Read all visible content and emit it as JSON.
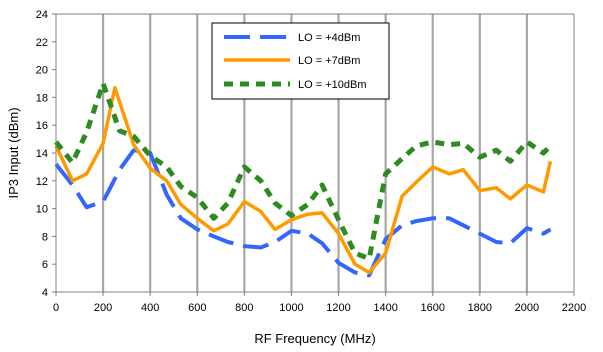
{
  "chart_data": {
    "type": "line",
    "xlabel": "RF Frequency (MHz)",
    "ylabel": "IP3 Input (dBm)",
    "xlim": [
      0,
      2200
    ],
    "ylim": [
      4,
      24
    ],
    "xticks": [
      0,
      200,
      400,
      600,
      800,
      1000,
      1200,
      1400,
      1600,
      1800,
      2000,
      2200
    ],
    "yticks": [
      4,
      6,
      8,
      10,
      12,
      14,
      16,
      18,
      20,
      22,
      24
    ],
    "grid": "vertical",
    "legend_position": "top-center",
    "series": [
      {
        "name": "LO = +4dBm",
        "color": "#3366FF",
        "style": "long-dash",
        "x": [
          0,
          70,
          130,
          200,
          270,
          330,
          400,
          470,
          530,
          600,
          670,
          730,
          800,
          870,
          930,
          1000,
          1070,
          1130,
          1200,
          1270,
          1330,
          1400,
          1470,
          1530,
          1600,
          1670,
          1730,
          1800,
          1870,
          1930,
          2000,
          2070,
          2100
        ],
        "values": [
          13.2,
          11.7,
          10.1,
          10.5,
          12.8,
          14.2,
          14.0,
          11.0,
          9.3,
          8.5,
          8.0,
          7.6,
          7.3,
          7.2,
          7.6,
          8.4,
          8.2,
          7.5,
          6.1,
          5.4,
          5.2,
          7.8,
          8.8,
          9.1,
          9.3,
          9.3,
          8.8,
          8.2,
          7.6,
          7.5,
          8.6,
          8.2,
          8.5
        ]
      },
      {
        "name": "LO = +7dBm",
        "color": "#FF9900",
        "style": "solid",
        "x": [
          0,
          70,
          130,
          200,
          250,
          330,
          400,
          470,
          530,
          600,
          670,
          730,
          800,
          870,
          930,
          1000,
          1070,
          1130,
          1200,
          1270,
          1330,
          1400,
          1470,
          1530,
          1600,
          1670,
          1730,
          1800,
          1870,
          1930,
          2000,
          2070,
          2100
        ],
        "values": [
          14.5,
          12.0,
          12.5,
          14.7,
          18.7,
          14.6,
          12.9,
          12.0,
          10.3,
          9.3,
          8.4,
          8.9,
          10.5,
          9.8,
          8.5,
          9.2,
          9.6,
          9.7,
          8.2,
          6.0,
          5.4,
          6.8,
          10.9,
          11.9,
          13.0,
          12.5,
          12.8,
          11.3,
          11.5,
          10.7,
          11.7,
          11.2,
          13.4
        ]
      },
      {
        "name": "LO = +10dBm",
        "color": "#2E8B22",
        "style": "short-dash",
        "x": [
          0,
          70,
          130,
          200,
          270,
          330,
          400,
          470,
          530,
          600,
          670,
          730,
          800,
          870,
          930,
          1000,
          1070,
          1130,
          1200,
          1270,
          1330,
          1400,
          1470,
          1530,
          1600,
          1670,
          1730,
          1800,
          1870,
          1930,
          2000,
          2070,
          2100
        ],
        "values": [
          14.8,
          13.3,
          15.5,
          19.0,
          15.6,
          15.2,
          13.8,
          13.0,
          11.6,
          10.8,
          9.3,
          10.4,
          13.0,
          12.0,
          10.4,
          9.5,
          10.3,
          11.7,
          9.2,
          6.8,
          6.4,
          12.5,
          13.6,
          14.5,
          14.8,
          14.6,
          14.7,
          13.7,
          14.2,
          13.4,
          14.8,
          14.0,
          14.5
        ]
      }
    ]
  }
}
